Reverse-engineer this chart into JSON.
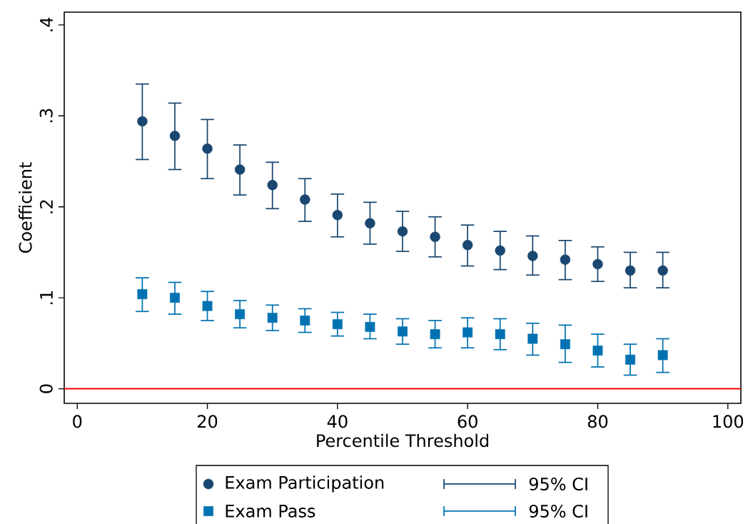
{
  "chart_data": {
    "type": "scatter",
    "xlabel": "Percentile Threshold",
    "ylabel": "Coefficient",
    "x": [
      10,
      15,
      20,
      25,
      30,
      35,
      40,
      45,
      50,
      55,
      60,
      65,
      70,
      75,
      80,
      85,
      90
    ],
    "series": [
      {
        "name": "Exam Participation",
        "color": "#1a476f",
        "marker": "circle",
        "values": [
          0.294,
          0.278,
          0.264,
          0.241,
          0.224,
          0.208,
          0.191,
          0.182,
          0.173,
          0.167,
          0.158,
          0.152,
          0.146,
          0.142,
          0.137,
          0.13,
          0.13
        ],
        "errors": [
          [
            0.252,
            0.335
          ],
          [
            0.241,
            0.314
          ],
          [
            0.231,
            0.296
          ],
          [
            0.213,
            0.268
          ],
          [
            0.198,
            0.249
          ],
          [
            0.184,
            0.231
          ],
          [
            0.167,
            0.214
          ],
          [
            0.159,
            0.205
          ],
          [
            0.151,
            0.195
          ],
          [
            0.145,
            0.189
          ],
          [
            0.135,
            0.18
          ],
          [
            0.131,
            0.173
          ],
          [
            0.125,
            0.168
          ],
          [
            0.12,
            0.163
          ],
          [
            0.118,
            0.156
          ],
          [
            0.111,
            0.15
          ],
          [
            0.111,
            0.15
          ]
        ]
      },
      {
        "name": "Exam Pass",
        "color": "#0072b2",
        "marker": "square",
        "values": [
          0.104,
          0.1,
          0.091,
          0.082,
          0.078,
          0.075,
          0.071,
          0.068,
          0.063,
          0.06,
          0.062,
          0.06,
          0.055,
          0.049,
          0.042,
          0.032,
          0.037
        ],
        "errors": [
          [
            0.085,
            0.122
          ],
          [
            0.082,
            0.117
          ],
          [
            0.075,
            0.107
          ],
          [
            0.067,
            0.097
          ],
          [
            0.064,
            0.092
          ],
          [
            0.062,
            0.088
          ],
          [
            0.058,
            0.084
          ],
          [
            0.055,
            0.082
          ],
          [
            0.049,
            0.077
          ],
          [
            0.045,
            0.075
          ],
          [
            0.045,
            0.078
          ],
          [
            0.043,
            0.077
          ],
          [
            0.037,
            0.072
          ],
          [
            0.029,
            0.07
          ],
          [
            0.024,
            0.06
          ],
          [
            0.015,
            0.049
          ],
          [
            0.018,
            0.055
          ]
        ]
      }
    ],
    "annotations": [
      "95% CI",
      "95% CI"
    ],
    "ref_lines": [
      {
        "axis": "y",
        "value": 0,
        "color": "#ff0000"
      }
    ],
    "xlim": [
      -2,
      102
    ],
    "ylim": [
      -0.016,
      0.414
    ],
    "xticks": [
      0,
      20,
      40,
      60,
      80,
      100
    ],
    "yticks": [
      {
        "value": 0,
        "label": "0"
      },
      {
        "value": 0.1,
        "label": ".1"
      },
      {
        "value": 0.2,
        "label": ".2"
      },
      {
        "value": 0.3,
        "label": ".3"
      },
      {
        "value": 0.4,
        "label": ".4"
      }
    ],
    "grid": false,
    "legend": "bottom"
  }
}
